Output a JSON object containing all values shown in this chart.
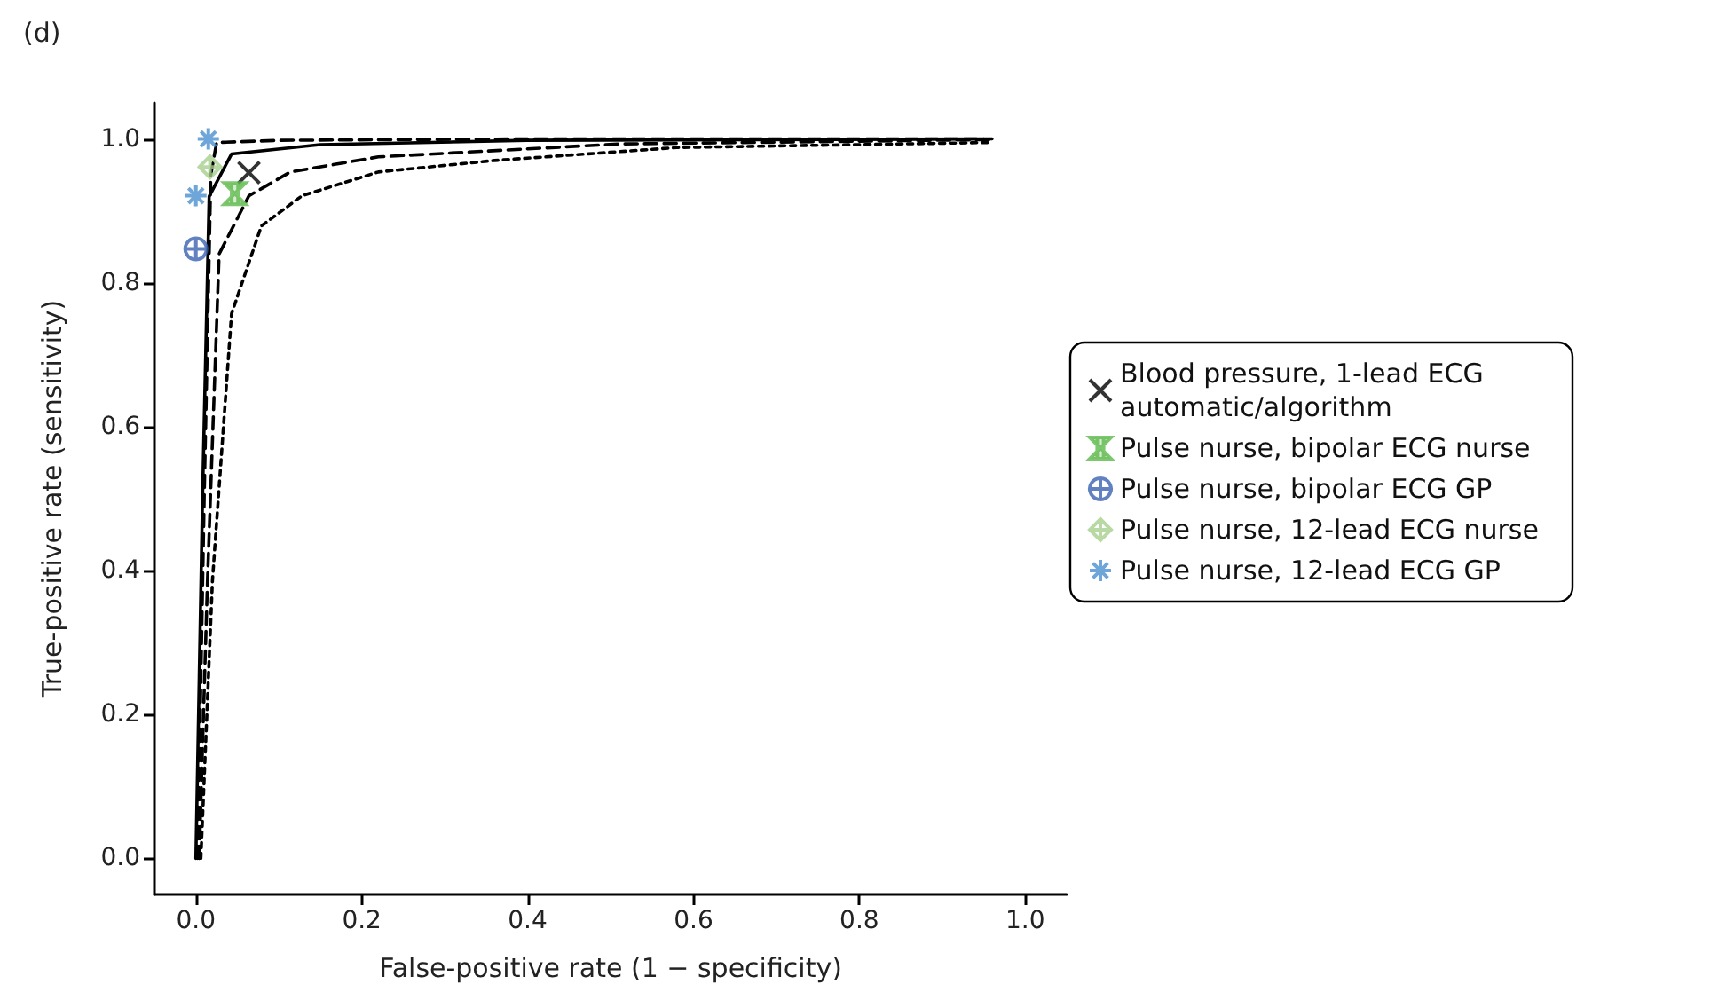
{
  "chart_data": {
    "type": "scatter",
    "title": "(d)",
    "xlabel": "False-positive rate (1 − specificity)",
    "ylabel": "True-positive rate (sensitivity)",
    "xlim": [
      -0.05,
      1.05
    ],
    "ylim": [
      -0.05,
      1.05
    ],
    "xticks": [
      {
        "value": 0,
        "label": "0.0"
      },
      0.2,
      0.4,
      0.6,
      0.8,
      {
        "value": 1,
        "label": "1.0"
      }
    ],
    "yticks": [
      {
        "value": 0,
        "label": "0.0"
      },
      0.2,
      0.4,
      0.6,
      0.8,
      {
        "value": 1,
        "label": "1.0"
      }
    ],
    "grid": false,
    "legend": "right",
    "series": [
      {
        "type": "line",
        "color": "#000000",
        "line_style": "solid",
        "marker": "none",
        "x": [
          0,
          0.008,
          0.016,
          0.043,
          0.15,
          0.4,
          0.96
        ],
        "values": [
          0,
          0.5,
          0.92,
          0.979,
          0.992,
          0.998,
          1.0
        ]
      },
      {
        "type": "line",
        "color": "#000000",
        "line_style": "dashed",
        "marker": "none",
        "x": [
          0.002,
          0.01,
          0.018,
          0.025,
          0.1,
          0.4,
          0.95
        ],
        "values": [
          0,
          0.5,
          0.95,
          0.995,
          0.998,
          1.0,
          1.0
        ]
      },
      {
        "type": "line",
        "color": "#000000",
        "line_style": "dashed",
        "marker": "none",
        "x": [
          0.004,
          0.014,
          0.028,
          0.064,
          0.114,
          0.22,
          0.51,
          0.96
        ],
        "values": [
          0,
          0.387,
          0.84,
          0.921,
          0.954,
          0.975,
          0.993,
          0.999
        ]
      },
      {
        "type": "line",
        "color": "#000000",
        "line_style": "dotted",
        "marker": "none",
        "x": [
          0.006,
          0.02,
          0.043,
          0.079,
          0.128,
          0.22,
          0.36,
          0.58,
          0.955
        ],
        "values": [
          0,
          0.387,
          0.757,
          0.879,
          0.921,
          0.954,
          0.97,
          0.988,
          0.995
        ]
      },
      {
        "name": "Blood pressure, 1-lead ECG automatic/algorithm",
        "color": "#000000",
        "marker": "cross",
        "x": [
          0.064
        ],
        "values": [
          0.953
        ]
      },
      {
        "name": "Pulse nurse, bipolar ECG nurse",
        "color": "#5cb94a",
        "x": [
          0.047
        ],
        "values": [
          0.924
        ]
      },
      {
        "name": "Pulse nurse, bipolar ECG GP",
        "color": "#3a62b0",
        "x": [
          0.0
        ],
        "values": [
          0.847
        ]
      },
      {
        "name": "Pulse nurse, 12-lead ECG nurse",
        "color": "#a8d08d",
        "x": [
          0.017
        ],
        "values": [
          0.961
        ]
      },
      {
        "name": "Pulse nurse, 12-lead ECG GP",
        "color": "#4a90d0",
        "x": [
          0.015,
          0.0
        ],
        "values": [
          1.0,
          0.921
        ]
      }
    ]
  }
}
